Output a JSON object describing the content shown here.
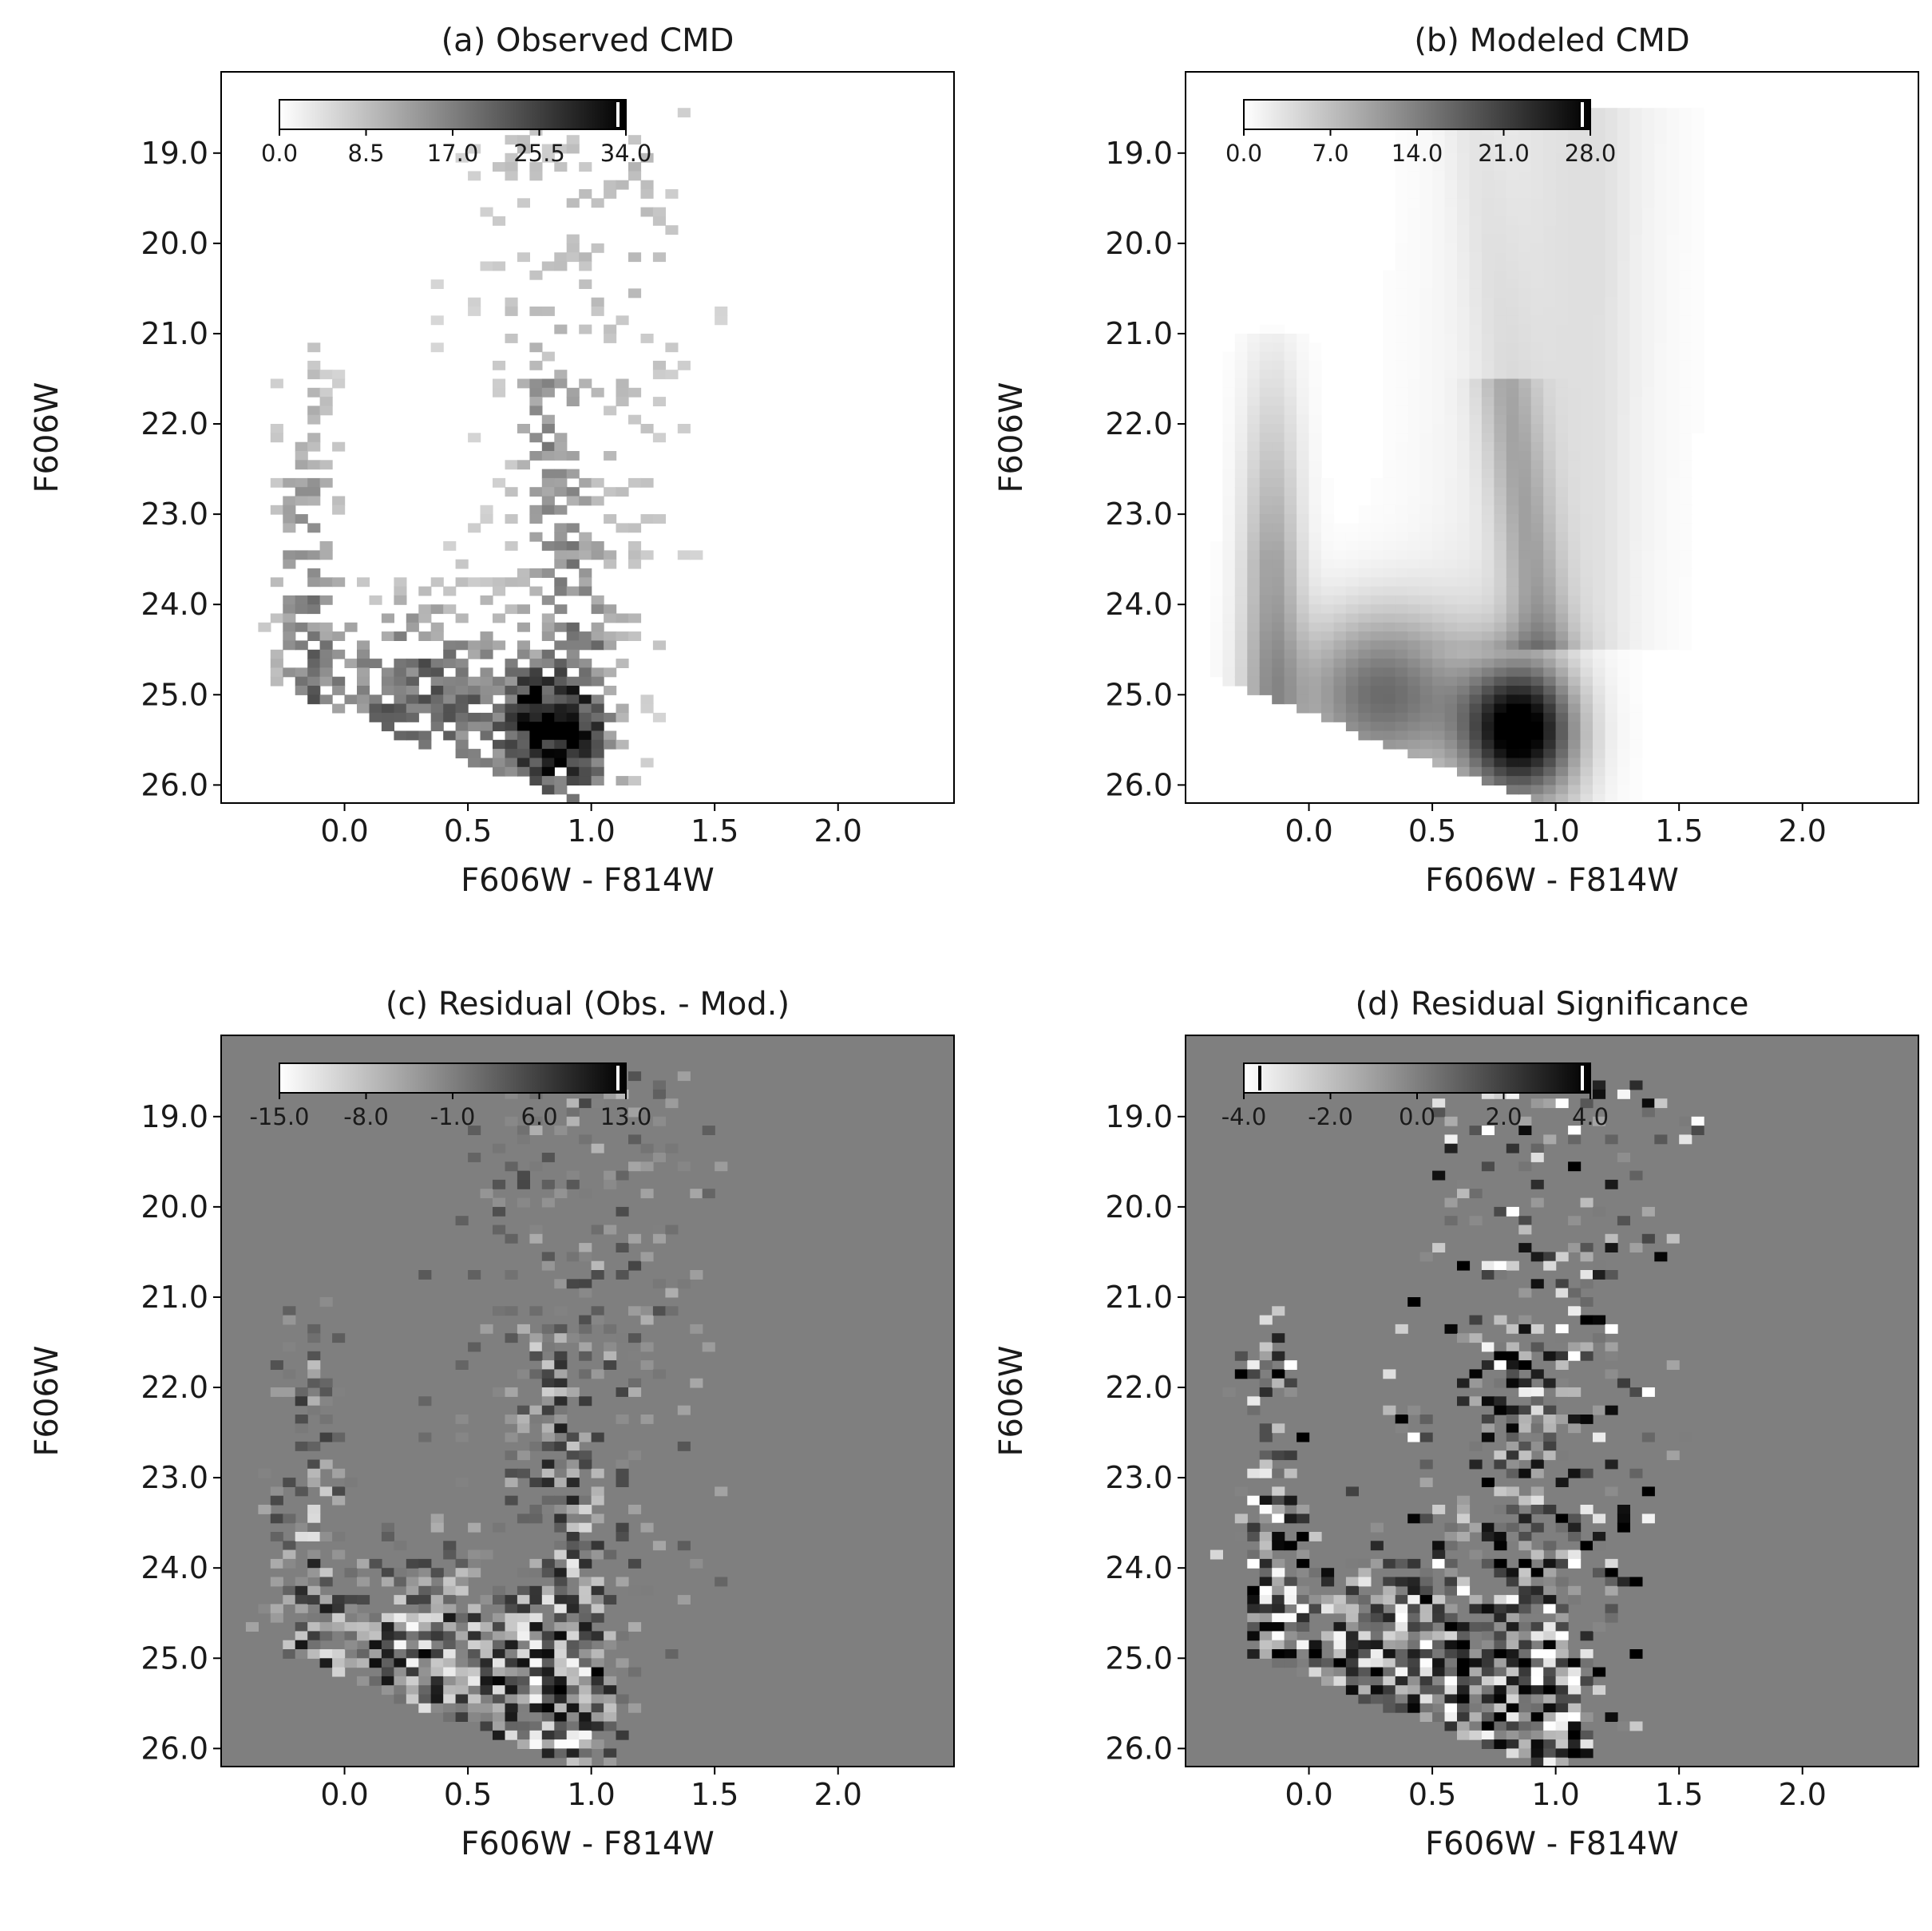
{
  "colormap": {
    "low": "#ffffff",
    "high": "#000000",
    "residual_background": "#7f7f7f",
    "axis_color": "#000000"
  },
  "chart_data": [
    {
      "type": "heatmap",
      "title": "(a) Observed CMD",
      "xlabel": "F606W - F814W",
      "ylabel": "F606W",
      "xlim": [
        -0.5,
        2.47
      ],
      "ylim": [
        26.2,
        18.1
      ],
      "y_inverted": true,
      "xticks": [
        0.0,
        0.5,
        1.0,
        1.5,
        2.0
      ],
      "xtick_labels": [
        "0.0",
        "0.5",
        "1.0",
        "1.5",
        "2.0"
      ],
      "yticks": [
        19.0,
        20.0,
        21.0,
        22.0,
        23.0,
        24.0,
        25.0,
        26.0
      ],
      "ytick_labels": [
        "19.0",
        "20.0",
        "21.0",
        "22.0",
        "23.0",
        "24.0",
        "25.0",
        "26.0"
      ],
      "colorbar": {
        "range": [
          0.0,
          34.0
        ],
        "tick_labels": [
          "0.0",
          "8.5",
          "17.0",
          "25.5",
          "34.0"
        ],
        "placement": "top-left"
      },
      "value_range": [
        0,
        34
      ],
      "mode": "observed",
      "notes_visual": "sparse 2D histogram of star counts; densest near color 0.6-1.0 and F606W 24.5-26"
    },
    {
      "type": "heatmap",
      "title": "(b) Modeled CMD",
      "xlabel": "F606W - F814W",
      "ylabel": "F606W",
      "xlim": [
        -0.5,
        2.47
      ],
      "ylim": [
        26.2,
        18.1
      ],
      "y_inverted": true,
      "xticks": [
        0.0,
        0.5,
        1.0,
        1.5,
        2.0
      ],
      "xtick_labels": [
        "0.0",
        "0.5",
        "1.0",
        "1.5",
        "2.0"
      ],
      "yticks": [
        19.0,
        20.0,
        21.0,
        22.0,
        23.0,
        24.0,
        25.0,
        26.0
      ],
      "ytick_labels": [
        "19.0",
        "20.0",
        "21.0",
        "22.0",
        "23.0",
        "24.0",
        "25.0",
        "26.0"
      ],
      "colorbar": {
        "range": [
          0.0,
          28.0
        ],
        "tick_labels": [
          "0.0",
          "7.0",
          "14.0",
          "21.0",
          "28.0"
        ],
        "placement": "top-left"
      },
      "value_range": [
        0,
        28
      ],
      "mode": "model"
    },
    {
      "type": "heatmap",
      "title": "(c) Residual (Obs. - Mod.)",
      "xlabel": "F606W - F814W",
      "ylabel": "F606W",
      "xlim": [
        -0.5,
        2.47
      ],
      "ylim": [
        26.2,
        18.1
      ],
      "y_inverted": true,
      "xticks": [
        0.0,
        0.5,
        1.0,
        1.5,
        2.0
      ],
      "xtick_labels": [
        "0.0",
        "0.5",
        "1.0",
        "1.5",
        "2.0"
      ],
      "yticks": [
        19.0,
        20.0,
        21.0,
        22.0,
        23.0,
        24.0,
        25.0,
        26.0
      ],
      "ytick_labels": [
        "19.0",
        "20.0",
        "21.0",
        "22.0",
        "23.0",
        "24.0",
        "25.0",
        "26.0"
      ],
      "colorbar": {
        "range": [
          -15.0,
          13.0
        ],
        "tick_labels": [
          "-15.0",
          "-8.0",
          "-1.0",
          "6.0",
          "13.0"
        ],
        "placement": "top-left"
      },
      "value_range": [
        -15,
        13
      ],
      "mode": "residual"
    },
    {
      "type": "heatmap",
      "title": "(d) Residual Significance",
      "xlabel": "F606W - F814W",
      "ylabel": "F606W",
      "xlim": [
        -0.5,
        2.47
      ],
      "ylim": [
        26.2,
        18.1
      ],
      "y_inverted": true,
      "xticks": [
        0.0,
        0.5,
        1.0,
        1.5,
        2.0
      ],
      "xtick_labels": [
        "0.0",
        "0.5",
        "1.0",
        "1.5",
        "2.0"
      ],
      "yticks": [
        19.0,
        20.0,
        21.0,
        22.0,
        23.0,
        24.0,
        25.0,
        26.0
      ],
      "ytick_labels": [
        "19.0",
        "20.0",
        "21.0",
        "22.0",
        "23.0",
        "24.0",
        "25.0",
        "26.0"
      ],
      "colorbar": {
        "range": [
          -4.0,
          4.0
        ],
        "tick_labels": [
          "-4.0",
          "-2.0",
          "0.0",
          "2.0",
          "4.0"
        ],
        "placement": "top-left"
      },
      "value_range": [
        -4,
        4
      ],
      "mode": "significance"
    }
  ]
}
